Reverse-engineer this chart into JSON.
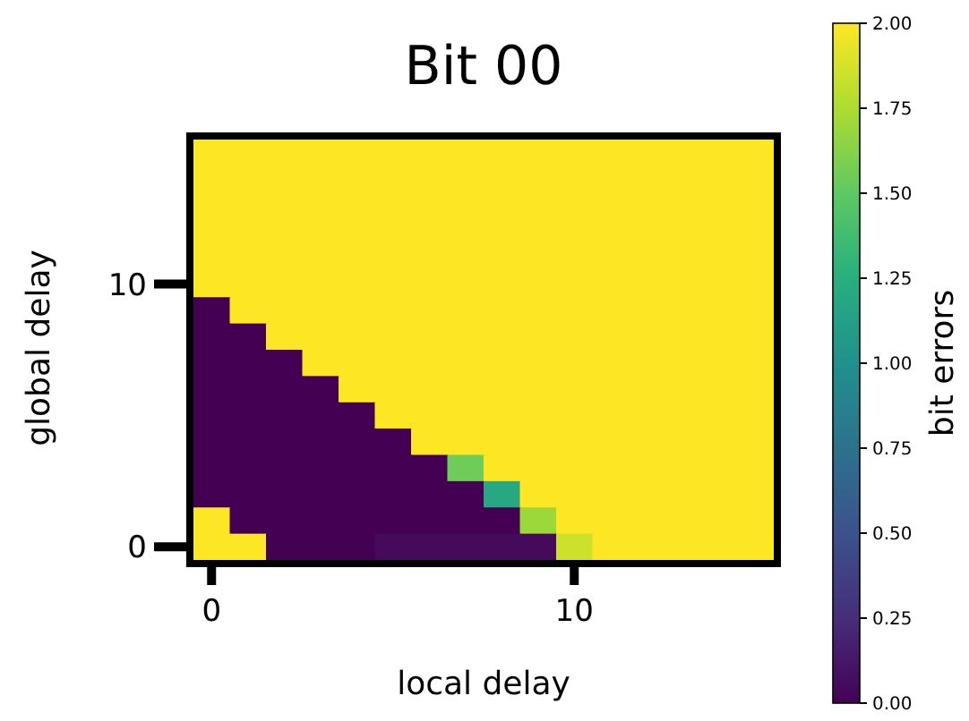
{
  "chart_data": {
    "type": "heatmap",
    "title": "Bit 00",
    "xlabel": "local delay",
    "ylabel": "global delay",
    "clabel": "bit errors",
    "categories": [
      "0",
      null,
      null,
      null,
      null,
      null,
      null,
      null,
      null,
      null,
      "10",
      null,
      null,
      null,
      null,
      null
    ],
    "y_categories": [
      null,
      null,
      null,
      null,
      null,
      "10",
      null,
      null,
      null,
      null,
      null,
      null,
      null,
      null,
      null,
      "0"
    ],
    "cells": [
      [
        2,
        2,
        2,
        2,
        2,
        2,
        2,
        2,
        2,
        2,
        2,
        2,
        2,
        2,
        2,
        2
      ],
      [
        2,
        2,
        2,
        2,
        2,
        2,
        2,
        2,
        2,
        2,
        2,
        2,
        2,
        2,
        2,
        2
      ],
      [
        2,
        2,
        2,
        2,
        2,
        2,
        2,
        2,
        2,
        2,
        2,
        2,
        2,
        2,
        2,
        2
      ],
      [
        2,
        2,
        2,
        2,
        2,
        2,
        2,
        2,
        2,
        2,
        2,
        2,
        2,
        2,
        2,
        2
      ],
      [
        2,
        2,
        2,
        2,
        2,
        2,
        2,
        2,
        2,
        2,
        2,
        2,
        2,
        2,
        2,
        2
      ],
      [
        2,
        2,
        2,
        2,
        2,
        2,
        2,
        2,
        2,
        2,
        2,
        2,
        2,
        2,
        2,
        2
      ],
      [
        0,
        2,
        2,
        2,
        2,
        2,
        2,
        2,
        2,
        2,
        2,
        2,
        2,
        2,
        2,
        2
      ],
      [
        0,
        0,
        2,
        2,
        2,
        2,
        2,
        2,
        2,
        2,
        2,
        2,
        2,
        2,
        2,
        2
      ],
      [
        0,
        0,
        0,
        2,
        2,
        2,
        2,
        2,
        2,
        2,
        2,
        2,
        2,
        2,
        2,
        2
      ],
      [
        0,
        0,
        0,
        0,
        2,
        2,
        2,
        2,
        2,
        2,
        2,
        2,
        2,
        2,
        2,
        2
      ],
      [
        0,
        0,
        0,
        0,
        0,
        2,
        2,
        2,
        2,
        2,
        2,
        2,
        2,
        2,
        2,
        2
      ],
      [
        0,
        0,
        0,
        0,
        0,
        0,
        2,
        2,
        2,
        2,
        2,
        2,
        2,
        2,
        2,
        2
      ],
      [
        0,
        0,
        0,
        0,
        0,
        0,
        0,
        1.55,
        2,
        2,
        2,
        2,
        2,
        2,
        2,
        2
      ],
      [
        0,
        0,
        0,
        0,
        0,
        0,
        0,
        0,
        1.2,
        2,
        2,
        2,
        2,
        2,
        2,
        2
      ],
      [
        2,
        0,
        0,
        0,
        0,
        0,
        0,
        0,
        0,
        1.7,
        2,
        2,
        2,
        2,
        2,
        2
      ],
      [
        2,
        2,
        0,
        0,
        0,
        0.05,
        0.05,
        0.05,
        0.05,
        0.05,
        1.85,
        2,
        2,
        2,
        2,
        2
      ]
    ],
    "clim": [
      0,
      2
    ],
    "cticks": [
      {
        "value": 0,
        "label": "0.00"
      },
      {
        "value": 0.25,
        "label": "0.25"
      },
      {
        "value": 0.5,
        "label": "0.50"
      },
      {
        "value": 0.75,
        "label": "0.75"
      },
      {
        "value": 1,
        "label": "1.00"
      },
      {
        "value": 1.25,
        "label": "1.25"
      },
      {
        "value": 1.5,
        "label": "1.50"
      },
      {
        "value": 1.75,
        "label": "1.75"
      },
      {
        "value": 2,
        "label": "2.00"
      }
    ]
  }
}
